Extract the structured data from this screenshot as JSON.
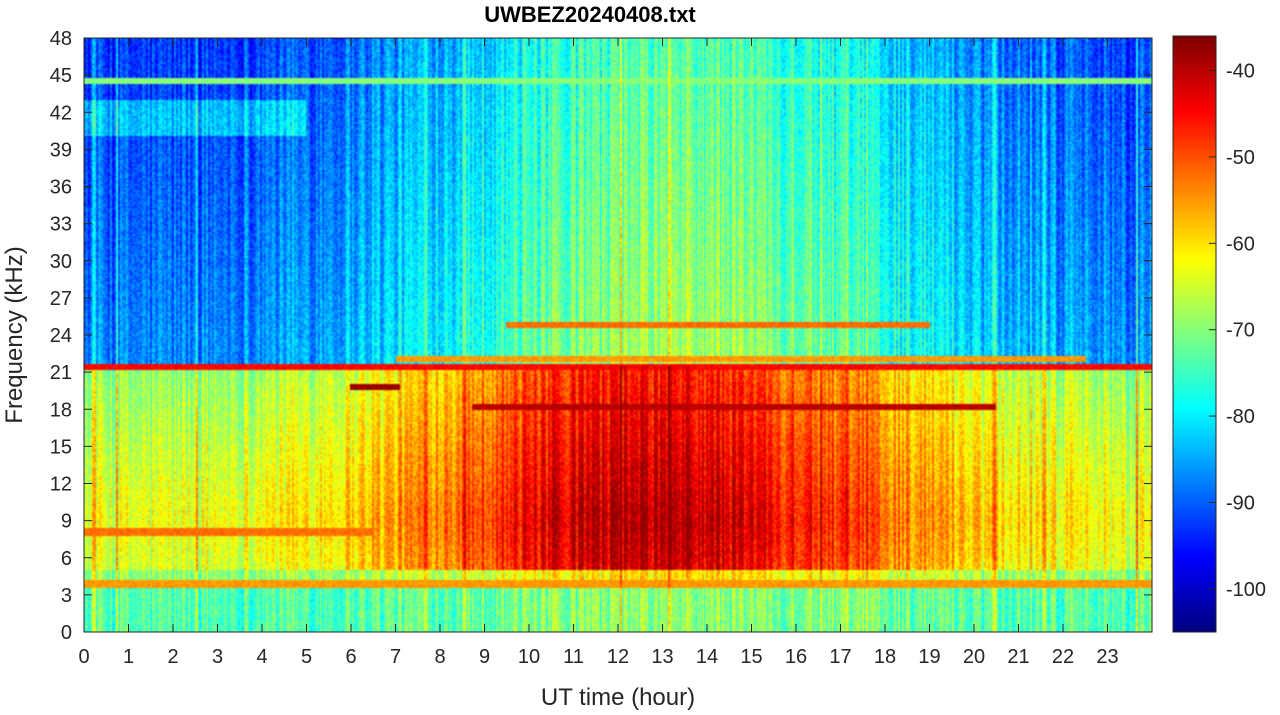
{
  "chart_data": {
    "type": "heatmap",
    "title": "UWBEZ20240408.txt",
    "xlabel": "UT time (hour)",
    "ylabel": "Frequency (kHz)",
    "xlim": [
      0,
      24
    ],
    "ylim": [
      0,
      48
    ],
    "x_ticks": [
      0,
      1,
      2,
      3,
      4,
      5,
      6,
      7,
      8,
      9,
      10,
      11,
      12,
      13,
      14,
      15,
      16,
      17,
      18,
      19,
      20,
      21,
      22,
      23
    ],
    "y_ticks": [
      0,
      3,
      6,
      9,
      12,
      15,
      18,
      21,
      24,
      27,
      30,
      33,
      36,
      39,
      42,
      45,
      48
    ],
    "colormap": "jet",
    "clim": [
      -105,
      -36
    ],
    "colorbar_ticks": [
      -40,
      -50,
      -60,
      -70,
      -80,
      -90,
      -100
    ],
    "grid": false,
    "narrowband_lines_khz": [
      {
        "freq": 18.2,
        "t_start": 8.7,
        "t_end": 20.5,
        "level": -40
      },
      {
        "freq": 21.4,
        "t_start": 0,
        "t_end": 24,
        "level": -45
      },
      {
        "freq": 19.8,
        "t_start": 6.0,
        "t_end": 7.1,
        "level": -38
      },
      {
        "freq": 24.8,
        "t_start": 9.5,
        "t_end": 19.0,
        "level": -52
      },
      {
        "freq": 22.1,
        "t_start": 7.0,
        "t_end": 22.5,
        "level": -55
      },
      {
        "freq": 8.1,
        "t_start": 0,
        "t_end": 6.5,
        "level": -52
      },
      {
        "freq": 3.9,
        "t_start": 0,
        "t_end": 24,
        "level": -55
      },
      {
        "freq": 44.5,
        "t_start": 0,
        "t_end": 24,
        "level": -70
      }
    ]
  }
}
